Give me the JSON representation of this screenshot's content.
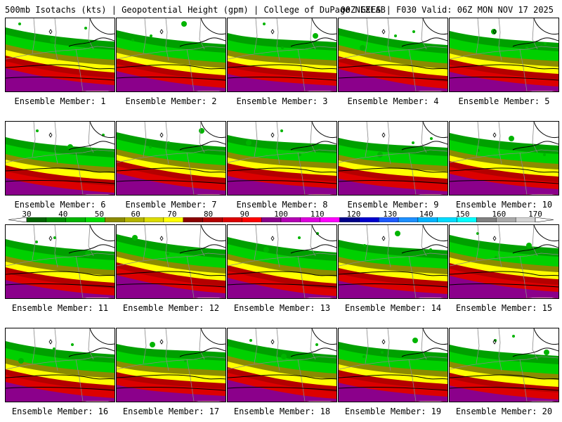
{
  "header": {
    "left": "500mb Isotachs (kts) | Geopotential Height (gpm) | College of DuPage NEXLAB",
    "right": "00Z GEFS | F030 Valid: 06Z MON NOV 17 2025"
  },
  "colorbar": {
    "labels": [
      "30",
      "40",
      "50",
      "60",
      "70",
      "80",
      "90",
      "100",
      "110",
      "120",
      "130",
      "140",
      "150",
      "160",
      "170"
    ],
    "colors": [
      "#006400",
      "#008c00",
      "#00b400",
      "#00dc00",
      "#8b8b00",
      "#b4b400",
      "#dcdc00",
      "#ffff00",
      "#8b0000",
      "#b40000",
      "#dc0000",
      "#ff0000",
      "#8b008b",
      "#b400b4",
      "#dc00dc",
      "#ff00ff",
      "#00008b",
      "#0000cd",
      "#1e5aff",
      "#1e90ff",
      "#00b4ff",
      "#00dcff",
      "#00ffff",
      "#808080",
      "#a9a9a9",
      "#d3d3d3"
    ]
  },
  "panels": [
    {
      "caption": "Ensemble Member: 1"
    },
    {
      "caption": "Ensemble Member: 2"
    },
    {
      "caption": "Ensemble Member: 3"
    },
    {
      "caption": "Ensemble Member: 4"
    },
    {
      "caption": "Ensemble Member: 5"
    },
    {
      "caption": "Ensemble Member: 6"
    },
    {
      "caption": "Ensemble Member: 7"
    },
    {
      "caption": "Ensemble Member: 8"
    },
    {
      "caption": "Ensemble Member: 9"
    },
    {
      "caption": "Ensemble Member: 10"
    },
    {
      "caption": "Ensemble Member: 11"
    },
    {
      "caption": "Ensemble Member: 12"
    },
    {
      "caption": "Ensemble Member: 13"
    },
    {
      "caption": "Ensemble Member: 14"
    },
    {
      "caption": "Ensemble Member: 15"
    },
    {
      "caption": "Ensemble Member: 16"
    },
    {
      "caption": "Ensemble Member: 17"
    },
    {
      "caption": "Ensemble Member: 18"
    },
    {
      "caption": "Ensemble Member: 19"
    },
    {
      "caption": "Ensemble Member: 20"
    }
  ]
}
